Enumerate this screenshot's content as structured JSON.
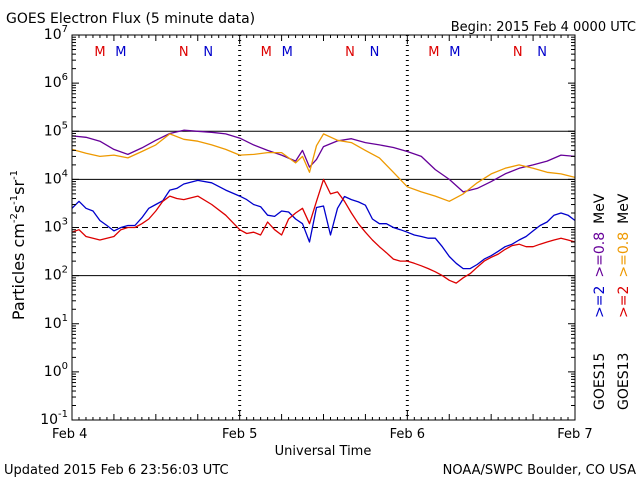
{
  "chart_data": {
    "type": "line",
    "title": "GOES Electron Flux (5 minute data)",
    "begin_label": "Begin: 2015 Feb 4 0000 UTC",
    "ylabel_main": "Particles cm",
    "ylabel_sup1": "-2",
    "ylabel_mid1": "s",
    "ylabel_sup2": "-1",
    "ylabel_mid2": "sr",
    "ylabel_sup3": "-1",
    "xlabel": "Universal Time",
    "footer_left": "Updated 2015 Feb  6 23:56:03 UTC",
    "footer_right": "NOAA/SWPC Boulder, CO USA",
    "x_unit": "hours since 2015 Feb 4 0000 UTC",
    "xlim": [
      0,
      72
    ],
    "ylim_log10": [
      -1,
      7
    ],
    "y_scale": "log",
    "y_ticks": [
      {
        "base": "10",
        "exp": "-1",
        "log": -1
      },
      {
        "base": "10",
        "exp": "0",
        "log": 0
      },
      {
        "base": "10",
        "exp": "1",
        "log": 1
      },
      {
        "base": "10",
        "exp": "2",
        "log": 2
      },
      {
        "base": "10",
        "exp": "3",
        "log": 3
      },
      {
        "base": "10",
        "exp": "4",
        "log": 4
      },
      {
        "base": "10",
        "exp": "5",
        "log": 5
      },
      {
        "base": "10",
        "exp": "6",
        "log": 6
      },
      {
        "base": "10",
        "exp": "7",
        "log": 7
      }
    ],
    "x_ticks": [
      {
        "label": "Feb 4",
        "hour": 0
      },
      {
        "label": "Feb 5",
        "hour": 24
      },
      {
        "label": "Feb 6",
        "hour": 48
      },
      {
        "label": "Feb 7",
        "hour": 72
      }
    ],
    "threshold_dashed_log10": 3,
    "solid_gridlines_log10": [
      2,
      4,
      5
    ],
    "noon_dotted_hours": [
      24,
      48
    ],
    "mn_markers": [
      {
        "text": "M",
        "hour": 4.0,
        "color": "#dd0000"
      },
      {
        "text": "M",
        "hour": 7.0,
        "color": "#0000cc"
      },
      {
        "text": "N",
        "hour": 16.0,
        "color": "#dd0000"
      },
      {
        "text": "N",
        "hour": 19.5,
        "color": "#0000cc"
      },
      {
        "text": "M",
        "hour": 27.8,
        "color": "#dd0000"
      },
      {
        "text": "M",
        "hour": 30.8,
        "color": "#0000cc"
      },
      {
        "text": "N",
        "hour": 39.8,
        "color": "#dd0000"
      },
      {
        "text": "N",
        "hour": 43.3,
        "color": "#0000cc"
      },
      {
        "text": "M",
        "hour": 51.8,
        "color": "#dd0000"
      },
      {
        "text": "M",
        "hour": 54.8,
        "color": "#0000cc"
      },
      {
        "text": "N",
        "hour": 63.8,
        "color": "#dd0000"
      },
      {
        "text": "N",
        "hour": 67.3,
        "color": "#0000cc"
      }
    ],
    "legend": {
      "placement": "right",
      "goes15": "GOES15",
      "goes13": "GOES13",
      "entries": [
        {
          "text": ">=2",
          "color": "#0000cc",
          "col": "goes15"
        },
        {
          "text": ">=0.8",
          "color": "#660099",
          "col": "goes15"
        },
        {
          "text": "MeV",
          "color": "#000000",
          "col": "goes15"
        },
        {
          "text": ">=2",
          "color": "#dd0000",
          "col": "goes13"
        },
        {
          "text": ">=0.8",
          "color": "#ee9900",
          "col": "goes13"
        },
        {
          "text": "MeV",
          "color": "#000000",
          "col": "goes13"
        }
      ]
    },
    "series": [
      {
        "name": "GOES15 >=0.8 MeV",
        "color": "#660099",
        "x": [
          0,
          2,
          4,
          6,
          8,
          10,
          12,
          14,
          16,
          18,
          20,
          22,
          24,
          26,
          28,
          30,
          32,
          33,
          34,
          35,
          36,
          38,
          40,
          42,
          44,
          46,
          48,
          50,
          52,
          54,
          56,
          58,
          60,
          62,
          64,
          66,
          68,
          70,
          72
        ],
        "y": [
          80000,
          75000,
          62000,
          42000,
          33000,
          45000,
          65000,
          90000,
          105000,
          100000,
          95000,
          88000,
          72000,
          52000,
          40000,
          32000,
          24000,
          40000,
          18000,
          26000,
          48000,
          63000,
          70000,
          58000,
          52000,
          46000,
          38000,
          30000,
          16000,
          10000,
          5500,
          6500,
          9000,
          13000,
          17000,
          20000,
          24000,
          32000,
          30000
        ]
      },
      {
        "name": "GOES13 >=0.8 MeV",
        "color": "#ee9900",
        "x": [
          0,
          2,
          4,
          6,
          8,
          10,
          12,
          14,
          16,
          18,
          20,
          22,
          24,
          26,
          28,
          30,
          32,
          33,
          34,
          35,
          36,
          38,
          40,
          42,
          44,
          46,
          48,
          50,
          52,
          54,
          56,
          58,
          60,
          62,
          64,
          66,
          68,
          70,
          72
        ],
        "y": [
          42000,
          35000,
          30000,
          32000,
          28000,
          38000,
          52000,
          88000,
          68000,
          62000,
          52000,
          42000,
          32000,
          33000,
          36000,
          36000,
          22000,
          30000,
          14000,
          50000,
          88000,
          65000,
          58000,
          40000,
          28000,
          14000,
          7000,
          5500,
          4500,
          3500,
          5000,
          8500,
          13000,
          17000,
          20000,
          17000,
          14000,
          13000,
          11000
        ]
      },
      {
        "name": "GOES15 >=2 MeV",
        "color": "#0000cc",
        "x": [
          0,
          1,
          2,
          3,
          4,
          5,
          6,
          7,
          8,
          9,
          10,
          11,
          12,
          13,
          14,
          15,
          16,
          18,
          20,
          22,
          24,
          25,
          26,
          27,
          28,
          29,
          30,
          31,
          32,
          33,
          34,
          35,
          36,
          37,
          38,
          39,
          40,
          41,
          42,
          43,
          44,
          45,
          46,
          47,
          48,
          49,
          50,
          51,
          52,
          53,
          54,
          55,
          56,
          57,
          58,
          59,
          60,
          61,
          62,
          63,
          64,
          65,
          66,
          67,
          68,
          69,
          70,
          71,
          72
        ],
        "y": [
          2500,
          3500,
          2500,
          2200,
          1400,
          1100,
          850,
          1000,
          1100,
          1100,
          1600,
          2500,
          3000,
          3600,
          6000,
          6500,
          8000,
          9500,
          8500,
          6000,
          4500,
          3800,
          3000,
          2700,
          1800,
          1700,
          2200,
          2100,
          1500,
          1200,
          500,
          2600,
          2800,
          700,
          2500,
          4400,
          3800,
          3400,
          2900,
          1500,
          1200,
          1200,
          1000,
          900,
          800,
          700,
          650,
          600,
          600,
          400,
          250,
          180,
          140,
          140,
          170,
          220,
          260,
          320,
          400,
          450,
          550,
          650,
          850,
          1100,
          1300,
          1800,
          2000,
          1800,
          1400
        ]
      },
      {
        "name": "GOES13 >=2 MeV",
        "color": "#dd0000",
        "x": [
          0,
          1,
          2,
          3,
          4,
          5,
          6,
          7,
          8,
          9,
          10,
          11,
          12,
          13,
          14,
          15,
          16,
          18,
          20,
          22,
          24,
          25,
          26,
          27,
          28,
          29,
          30,
          31,
          32,
          33,
          34,
          35,
          36,
          37,
          38,
          39,
          40,
          41,
          42,
          43,
          44,
          45,
          46,
          47,
          48,
          49,
          50,
          51,
          52,
          53,
          54,
          55,
          56,
          57,
          58,
          59,
          60,
          61,
          62,
          63,
          64,
          65,
          66,
          67,
          68,
          69,
          70,
          71,
          72
        ],
        "y": [
          800,
          900,
          650,
          600,
          550,
          600,
          650,
          900,
          1000,
          1000,
          1200,
          1500,
          2200,
          3500,
          4500,
          4000,
          3800,
          4500,
          3000,
          1800,
          900,
          750,
          800,
          700,
          1300,
          900,
          700,
          1500,
          2000,
          2500,
          1200,
          3500,
          10000,
          5000,
          5500,
          3500,
          2000,
          1200,
          800,
          550,
          400,
          300,
          220,
          200,
          200,
          180,
          160,
          140,
          120,
          100,
          80,
          70,
          90,
          110,
          150,
          200,
          240,
          280,
          350,
          420,
          450,
          400,
          400,
          450,
          500,
          550,
          600,
          550,
          500
        ]
      }
    ]
  }
}
